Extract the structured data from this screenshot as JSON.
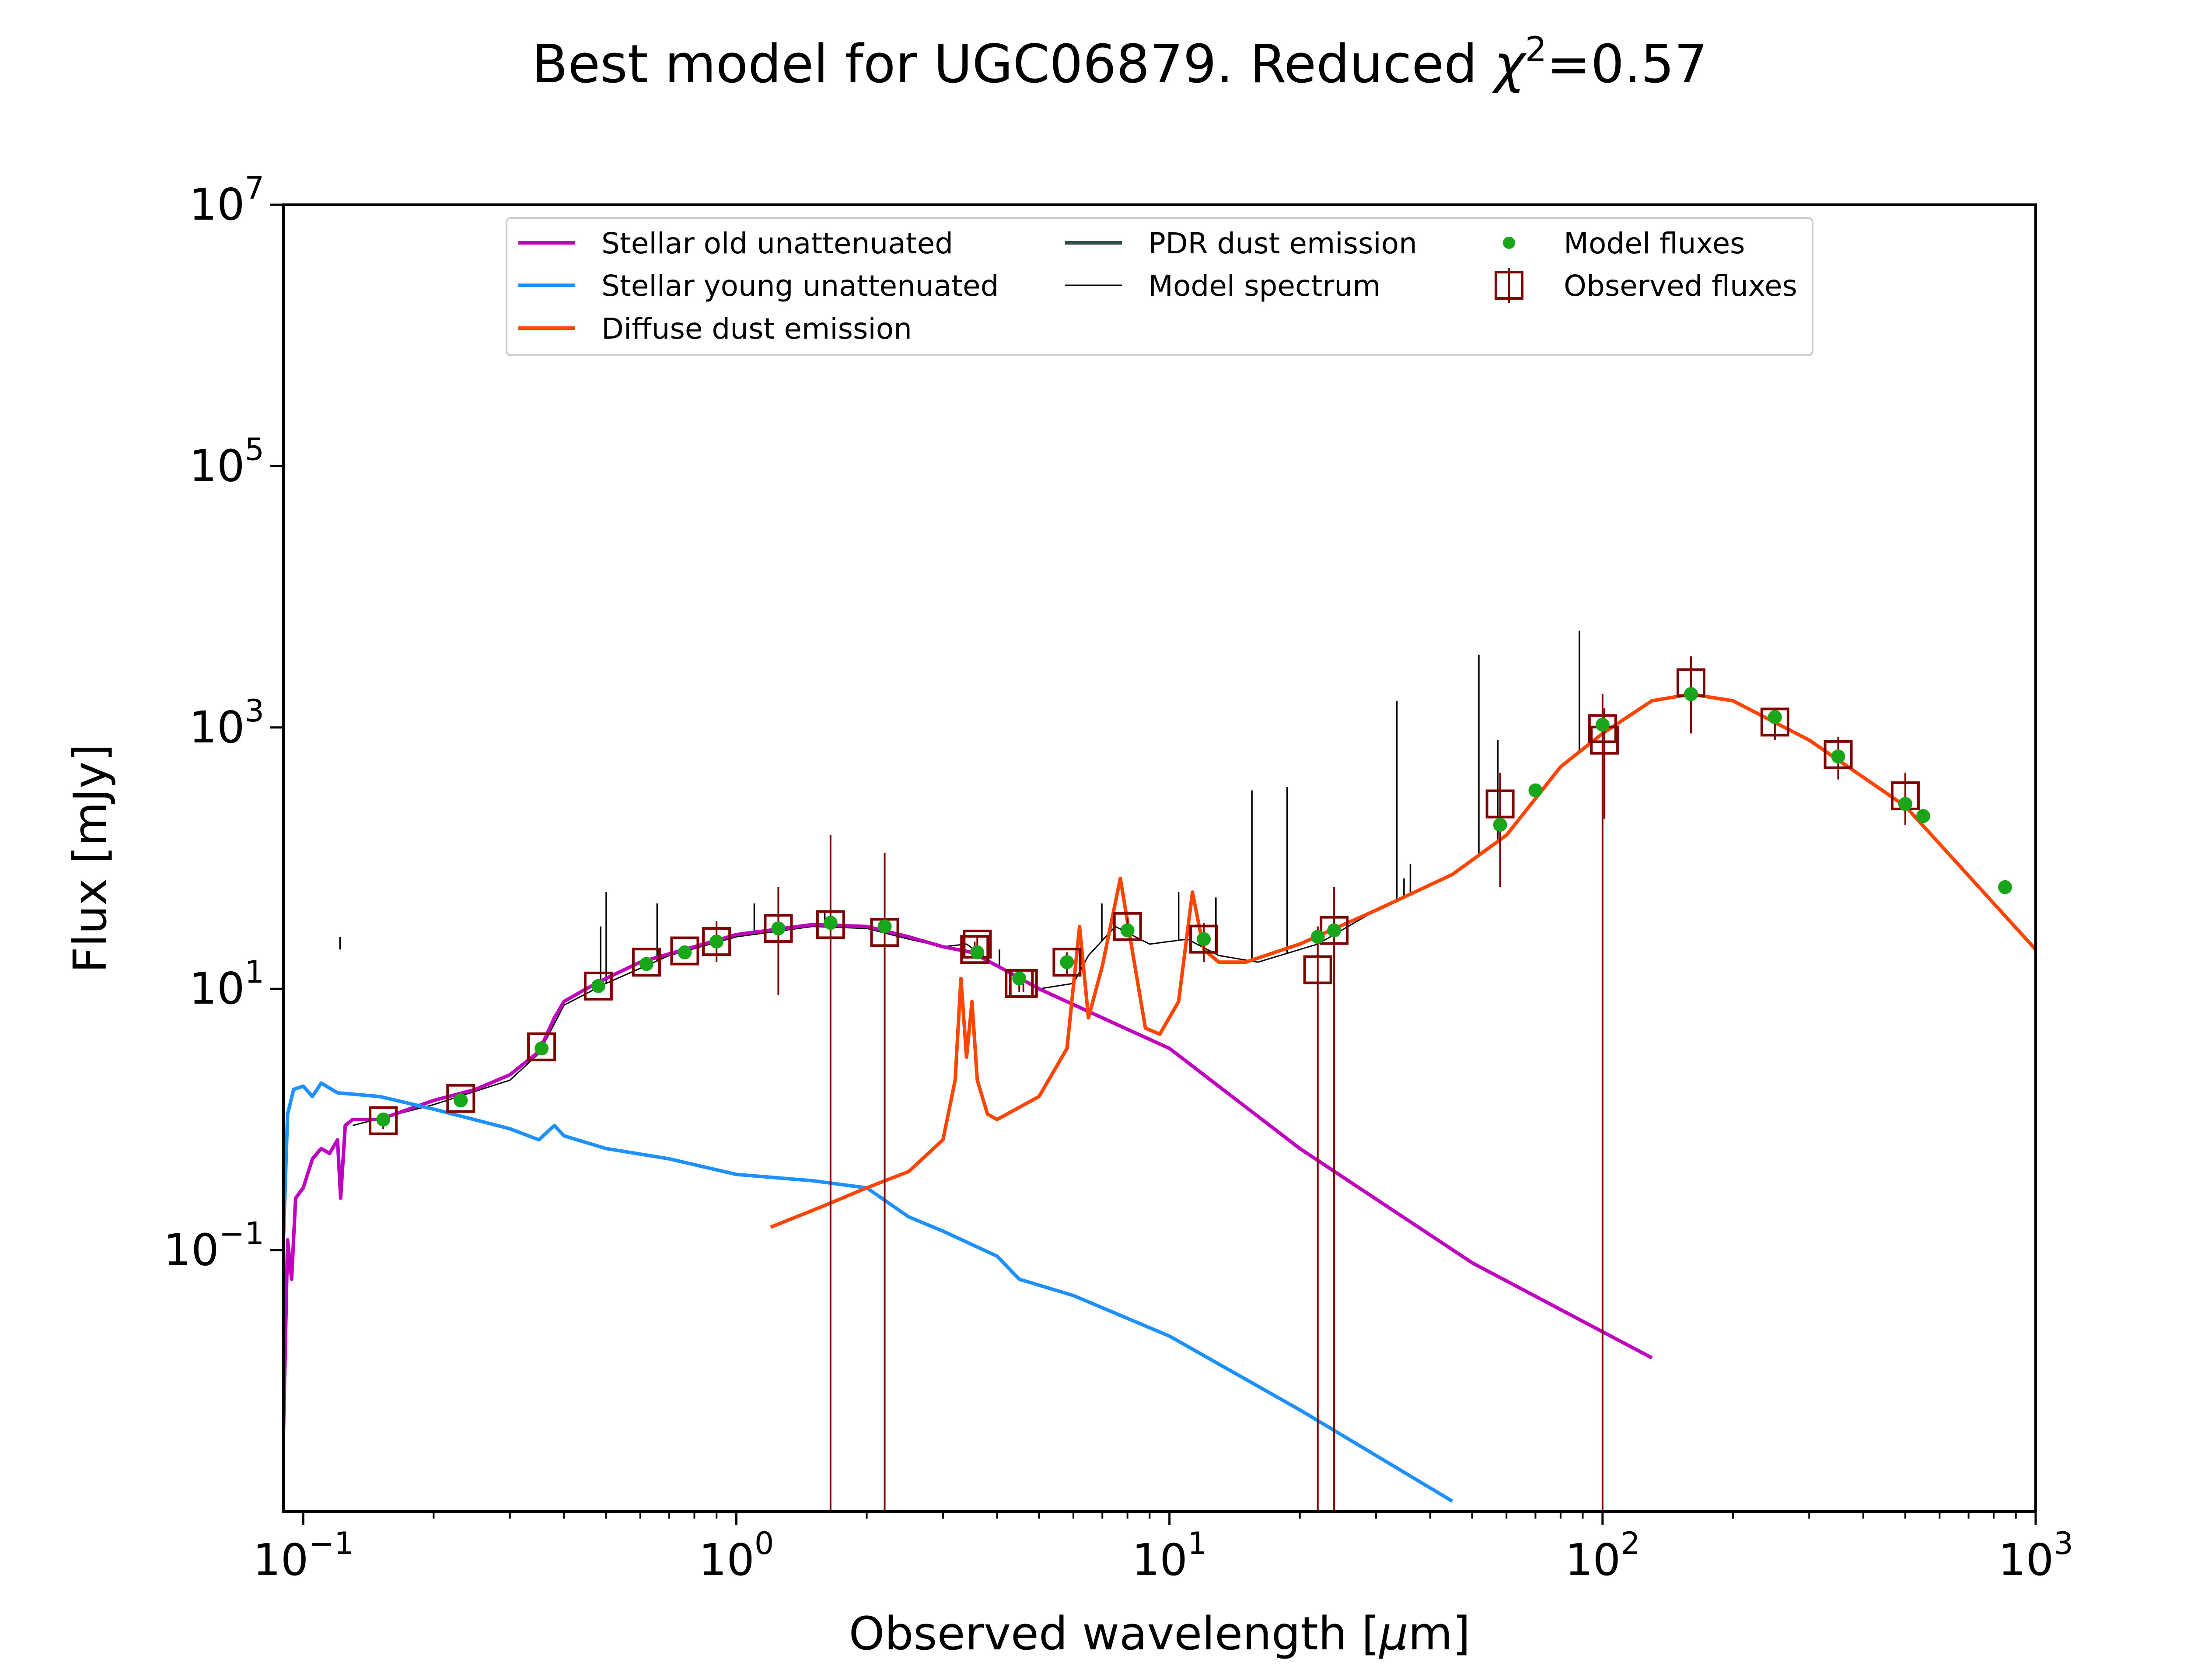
{
  "chart_data": {
    "type": "line",
    "title_prefix": "Best model for UGC06879. Reduced ",
    "title_chi": "χ",
    "title_chi_exp": "2",
    "title_value": "=0.57",
    "xlabel_prefix": "Observed wavelength [",
    "xlabel_mu": "μ",
    "xlabel_suffix": "m]",
    "ylabel": "Flux [mJy]",
    "xscale": "log",
    "yscale": "log",
    "xlim": [
      0.09,
      1000
    ],
    "ylim": [
      0.001,
      10000000
    ],
    "x_ticks": [
      {
        "value": 0.1,
        "base": "10",
        "exp": "−1"
      },
      {
        "value": 1,
        "base": "10",
        "exp": "0"
      },
      {
        "value": 10,
        "base": "10",
        "exp": "1"
      },
      {
        "value": 100,
        "base": "10",
        "exp": "2"
      },
      {
        "value": 1000,
        "base": "10",
        "exp": "3"
      }
    ],
    "y_ticks": [
      {
        "value": 0.1,
        "base": "10",
        "exp": "−1"
      },
      {
        "value": 10,
        "base": "10",
        "exp": "1"
      },
      {
        "value": 1000,
        "base": "10",
        "exp": "3"
      },
      {
        "value": 100000,
        "base": "10",
        "exp": "5"
      },
      {
        "value": 10000000,
        "base": "10",
        "exp": "7"
      }
    ],
    "legend": {
      "position": "upper-center",
      "entries": [
        {
          "label": "Stellar old unattenuated",
          "color": "#bf00bf",
          "marker": "line"
        },
        {
          "label": "Stellar young unattenuated",
          "color": "#1e90ff",
          "marker": "line"
        },
        {
          "label": "Diffuse dust emission",
          "color": "#ff4500",
          "marker": "line"
        },
        {
          "label": "PDR dust emission",
          "color": "#2f4f4f",
          "marker": "line"
        },
        {
          "label": "Model spectrum",
          "color": "#000000",
          "marker": "thinline"
        },
        {
          "label": "Model fluxes",
          "color": "#1aa61a",
          "marker": "dot"
        },
        {
          "label": "Observed fluxes",
          "color": "#800000",
          "marker": "errsquare"
        }
      ]
    },
    "series": [
      {
        "name": "Stellar old unattenuated",
        "color": "#bf00bf",
        "points": [
          [
            0.09,
            0.004
          ],
          [
            0.092,
            0.12
          ],
          [
            0.094,
            0.06
          ],
          [
            0.096,
            0.25
          ],
          [
            0.1,
            0.3
          ],
          [
            0.105,
            0.5
          ],
          [
            0.11,
            0.6
          ],
          [
            0.115,
            0.55
          ],
          [
            0.12,
            0.7
          ],
          [
            0.122,
            0.25
          ],
          [
            0.125,
            0.9
          ],
          [
            0.13,
            1.0
          ],
          [
            0.15,
            1.0
          ],
          [
            0.2,
            1.4
          ],
          [
            0.25,
            1.7
          ],
          [
            0.3,
            2.2
          ],
          [
            0.35,
            3.3
          ],
          [
            0.38,
            6
          ],
          [
            0.4,
            8
          ],
          [
            0.45,
            10
          ],
          [
            0.5,
            12
          ],
          [
            0.6,
            16
          ],
          [
            0.8,
            21
          ],
          [
            1.0,
            26
          ],
          [
            1.5,
            31
          ],
          [
            2.0,
            30
          ],
          [
            2.5,
            25
          ],
          [
            3.0,
            21
          ],
          [
            3.5,
            19
          ],
          [
            4.0,
            15
          ],
          [
            5.0,
            10
          ],
          [
            7.0,
            6
          ],
          [
            10.0,
            3.5
          ],
          [
            20.0,
            0.6
          ],
          [
            50.0,
            0.08
          ],
          [
            130.0,
            0.015
          ]
        ]
      },
      {
        "name": "Stellar young unattenuated",
        "color": "#1e90ff",
        "points": [
          [
            0.09,
            0.12
          ],
          [
            0.092,
            1.1
          ],
          [
            0.095,
            1.7
          ],
          [
            0.1,
            1.8
          ],
          [
            0.105,
            1.5
          ],
          [
            0.11,
            1.9
          ],
          [
            0.12,
            1.6
          ],
          [
            0.15,
            1.5
          ],
          [
            0.2,
            1.2
          ],
          [
            0.3,
            0.85
          ],
          [
            0.35,
            0.7
          ],
          [
            0.38,
            0.9
          ],
          [
            0.4,
            0.75
          ],
          [
            0.5,
            0.6
          ],
          [
            0.7,
            0.5
          ],
          [
            1.0,
            0.38
          ],
          [
            1.5,
            0.34
          ],
          [
            2.0,
            0.3
          ],
          [
            2.5,
            0.18
          ],
          [
            3.0,
            0.14
          ],
          [
            4.0,
            0.09
          ],
          [
            4.5,
            0.06
          ],
          [
            6.0,
            0.045
          ],
          [
            10.0,
            0.022
          ],
          [
            20.0,
            0.006
          ],
          [
            45.0,
            0.0012
          ]
        ]
      },
      {
        "name": "Diffuse dust emission",
        "color": "#ff4500",
        "points": [
          [
            1.2,
            0.15
          ],
          [
            1.6,
            0.22
          ],
          [
            2.0,
            0.3
          ],
          [
            2.5,
            0.4
          ],
          [
            3.0,
            0.7
          ],
          [
            3.2,
            2.0
          ],
          [
            3.3,
            12
          ],
          [
            3.4,
            3
          ],
          [
            3.5,
            8
          ],
          [
            3.6,
            2
          ],
          [
            3.8,
            1.1
          ],
          [
            4.0,
            1.0
          ],
          [
            5.0,
            1.5
          ],
          [
            5.8,
            3.5
          ],
          [
            6.2,
            30
          ],
          [
            6.5,
            6
          ],
          [
            7.0,
            15
          ],
          [
            7.7,
            70
          ],
          [
            8.2,
            20
          ],
          [
            8.8,
            5
          ],
          [
            9.5,
            4.5
          ],
          [
            10.5,
            8
          ],
          [
            11.3,
            55
          ],
          [
            12.0,
            20
          ],
          [
            13.0,
            16
          ],
          [
            15.0,
            16
          ],
          [
            20.0,
            22
          ],
          [
            30.0,
            40
          ],
          [
            45.0,
            75
          ],
          [
            60.0,
            150
          ],
          [
            80.0,
            500
          ],
          [
            100.0,
            900
          ],
          [
            130.0,
            1600
          ],
          [
            160.0,
            1800
          ],
          [
            200.0,
            1600
          ],
          [
            300.0,
            800
          ],
          [
            500.0,
            250
          ],
          [
            1000.0,
            20
          ]
        ]
      }
    ],
    "model_fluxes": [
      [
        0.153,
        1.0
      ],
      [
        0.231,
        1.4
      ],
      [
        0.355,
        3.5
      ],
      [
        0.48,
        10.5
      ],
      [
        0.62,
        15.5
      ],
      [
        0.76,
        19
      ],
      [
        0.9,
        23
      ],
      [
        1.25,
        29
      ],
      [
        1.65,
        32
      ],
      [
        2.2,
        30
      ],
      [
        3.6,
        19
      ],
      [
        4.5,
        12
      ],
      [
        5.8,
        16
      ],
      [
        8.0,
        28
      ],
      [
        12.0,
        24
      ],
      [
        22.0,
        25
      ],
      [
        24.0,
        28
      ],
      [
        58.0,
        180
      ],
      [
        70.0,
        330
      ],
      [
        100.0,
        1050
      ],
      [
        160.0,
        1800
      ],
      [
        250.0,
        1200
      ],
      [
        350.0,
        600
      ],
      [
        500.0,
        260
      ],
      [
        550.0,
        210
      ],
      [
        850.0,
        60
      ]
    ],
    "observed_fluxes": [
      {
        "x": 0.153,
        "y": 0.98,
        "err": [
          0.85,
          1.1
        ]
      },
      {
        "x": 0.231,
        "y": 1.45,
        "err": [
          1.3,
          1.6
        ]
      },
      {
        "x": 0.355,
        "y": 3.6,
        "err": [
          3.2,
          4.0
        ]
      },
      {
        "x": 0.48,
        "y": 10.5,
        "err": [
          9.5,
          11.5
        ]
      },
      {
        "x": 0.62,
        "y": 16,
        "err": [
          14.5,
          17.5
        ]
      },
      {
        "x": 0.76,
        "y": 19.5,
        "err": [
          18,
          21
        ]
      },
      {
        "x": 0.9,
        "y": 23,
        "err": [
          16,
          33
        ]
      },
      {
        "x": 1.25,
        "y": 29,
        "err": [
          9,
          60
        ]
      },
      {
        "x": 1.65,
        "y": 31,
        "err": [
          0.001,
          150
        ]
      },
      {
        "x": 2.2,
        "y": 27,
        "err": [
          0.001,
          110
        ]
      },
      {
        "x": 3.55,
        "y": 20,
        "err": [
          17,
          23
        ]
      },
      {
        "x": 3.6,
        "y": 22,
        "err": [
          19,
          25
        ]
      },
      {
        "x": 4.5,
        "y": 11,
        "err": [
          9.5,
          12.5
        ]
      },
      {
        "x": 4.6,
        "y": 11,
        "err": [
          9.5,
          12.5
        ]
      },
      {
        "x": 5.8,
        "y": 16,
        "err": [
          13,
          19
        ]
      },
      {
        "x": 8.0,
        "y": 30,
        "err": [
          25,
          35
        ]
      },
      {
        "x": 12.0,
        "y": 24,
        "err": [
          16,
          32
        ]
      },
      {
        "x": 22.0,
        "y": 14,
        "err": [
          0.001,
          30
        ]
      },
      {
        "x": 24.0,
        "y": 28,
        "err": [
          0.001,
          60
        ]
      },
      {
        "x": 58.0,
        "y": 260,
        "err": [
          60,
          450
        ]
      },
      {
        "x": 100.0,
        "y": 980,
        "err": [
          0.001,
          1800
        ]
      },
      {
        "x": 101.0,
        "y": 800,
        "err": [
          200,
          1400
        ]
      },
      {
        "x": 160.0,
        "y": 2200,
        "err": [
          900,
          3500
        ]
      },
      {
        "x": 250.0,
        "y": 1100,
        "err": [
          800,
          1400
        ]
      },
      {
        "x": 350.0,
        "y": 620,
        "err": [
          400,
          850
        ]
      },
      {
        "x": 500.0,
        "y": 300,
        "err": [
          180,
          450
        ]
      }
    ],
    "model_spectrum": {
      "color": "#000000",
      "continuum": [
        [
          0.13,
          0.9
        ],
        [
          0.2,
          1.3
        ],
        [
          0.3,
          2.0
        ],
        [
          0.35,
          3.2
        ],
        [
          0.4,
          7.5
        ],
        [
          0.5,
          11
        ],
        [
          0.7,
          18
        ],
        [
          1.0,
          25
        ],
        [
          1.5,
          30
        ],
        [
          2.0,
          29
        ],
        [
          2.5,
          24
        ],
        [
          3.0,
          21
        ],
        [
          3.4,
          22
        ],
        [
          4.0,
          15
        ],
        [
          5.0,
          10
        ],
        [
          6.0,
          11
        ],
        [
          6.5,
          18
        ],
        [
          7.5,
          30
        ],
        [
          9.0,
          22
        ],
        [
          11.0,
          24
        ],
        [
          13.0,
          18
        ],
        [
          16.0,
          16
        ],
        [
          22.0,
          22
        ],
        [
          30.0,
          40
        ],
        [
          45.0,
          75
        ],
        [
          60.0,
          150
        ],
        [
          80.0,
          500
        ],
        [
          100.0,
          900
        ],
        [
          130.0,
          1600
        ],
        [
          160.0,
          1800
        ],
        [
          200.0,
          1600
        ],
        [
          300.0,
          800
        ],
        [
          500.0,
          250
        ],
        [
          1000.0,
          20
        ]
      ],
      "lines": [
        [
          0.1216,
          25
        ],
        [
          0.486,
          30
        ],
        [
          0.5007,
          55
        ],
        [
          0.6563,
          45
        ],
        [
          1.1,
          45
        ],
        [
          1.6,
          40
        ],
        [
          4.05,
          20
        ],
        [
          6.98,
          45
        ],
        [
          10.5,
          55
        ],
        [
          12.8,
          50
        ],
        [
          15.5,
          330
        ],
        [
          18.7,
          350
        ],
        [
          33.5,
          1600
        ],
        [
          34.8,
          70
        ],
        [
          36,
          90
        ],
        [
          51.8,
          3600
        ],
        [
          57.3,
          800
        ],
        [
          88.4,
          5500
        ]
      ]
    }
  }
}
